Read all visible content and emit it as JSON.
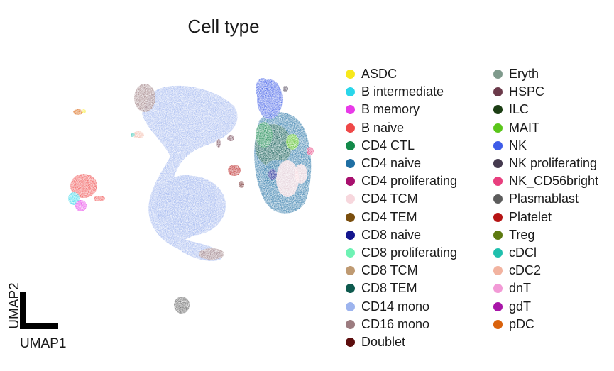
{
  "chart_data": {
    "type": "scatter",
    "title": "Cell type",
    "xlabel": "UMAP1",
    "ylabel": "UMAP2",
    "grid": false,
    "legend_position": "right",
    "series": [
      {
        "name": "ASDC",
        "color": "#f7e81b"
      },
      {
        "name": "B intermediate",
        "color": "#2ad6ea"
      },
      {
        "name": "B memory",
        "color": "#e83ae8"
      },
      {
        "name": "B naive",
        "color": "#ef4848"
      },
      {
        "name": "CD4 CTL",
        "color": "#138a4a"
      },
      {
        "name": "CD4 naive",
        "color": "#1f6fa3"
      },
      {
        "name": "CD4 proliferating",
        "color": "#a8106e"
      },
      {
        "name": "CD4 TCM",
        "color": "#f7d7dd"
      },
      {
        "name": "CD4 TEM",
        "color": "#7a4e0d"
      },
      {
        "name": "CD8 naive",
        "color": "#14168e"
      },
      {
        "name": "CD8 proliferating",
        "color": "#6ef2b4"
      },
      {
        "name": "CD8 TCM",
        "color": "#bf9a72"
      },
      {
        "name": "CD8 TEM",
        "color": "#0e5a4e"
      },
      {
        "name": "CD14 mono",
        "color": "#9db4ee"
      },
      {
        "name": "CD16 mono",
        "color": "#9c7c80"
      },
      {
        "name": "Doublet",
        "color": "#5c0d0d"
      },
      {
        "name": "Eryth",
        "color": "#7f9a8c"
      },
      {
        "name": "HSPC",
        "color": "#6b3a4a"
      },
      {
        "name": "ILC",
        "color": "#1c3e14"
      },
      {
        "name": "MAIT",
        "color": "#5ac61a"
      },
      {
        "name": "NK",
        "color": "#3e5ce8"
      },
      {
        "name": "NK proliferating",
        "color": "#453a4f"
      },
      {
        "name": "NK_CD56bright",
        "color": "#e83f7e"
      },
      {
        "name": "Plasmablast",
        "color": "#5c5c5c"
      },
      {
        "name": "Platelet",
        "color": "#b61414"
      },
      {
        "name": "Treg",
        "color": "#5d7a10"
      },
      {
        "name": "cDCl",
        "color": "#1fbfad"
      },
      {
        "name": "cDC2",
        "color": "#f2b3a0"
      },
      {
        "name": "dnT",
        "color": "#f29ad6"
      },
      {
        "name": "gdT",
        "color": "#a815a8"
      },
      {
        "name": "pDC",
        "color": "#d9620c"
      }
    ]
  }
}
